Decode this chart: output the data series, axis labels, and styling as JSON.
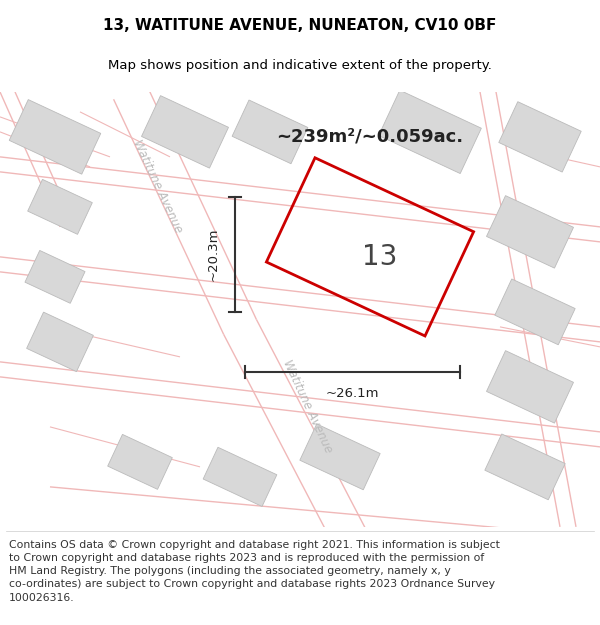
{
  "title": "13, WATITUNE AVENUE, NUNEATON, CV10 0BF",
  "subtitle": "Map shows position and indicative extent of the property.",
  "area_text": "~239m²/~0.059ac.",
  "property_number": "13",
  "dim_width": "~26.1m",
  "dim_height": "~20.3m",
  "map_bg_color": "#f7f6f4",
  "property_fill": "none",
  "property_edge": "#cc0000",
  "road_color": "#f0b8b8",
  "building_fill": "#d8d8d8",
  "building_edge": "#bbbbbb",
  "footer_text": "Contains OS data © Crown copyright and database right 2021. This information is subject\nto Crown copyright and database rights 2023 and is reproduced with the permission of\nHM Land Registry. The polygons (including the associated geometry, namely x, y\nco-ordinates) are subject to Crown copyright and database rights 2023 Ordnance Survey\n100026316.",
  "title_fontsize": 11,
  "subtitle_fontsize": 9.5,
  "footer_fontsize": 7.8,
  "annotation_fontsize": 9.5,
  "road_label_color": "#bbbbbb",
  "road_label_size": 8.5
}
